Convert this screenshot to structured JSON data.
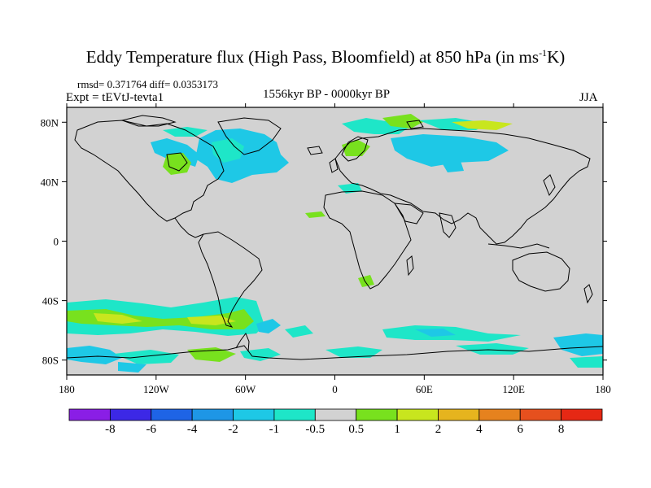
{
  "title": {
    "text": "Eddy Temperature flux (High Pass, Bloomfield) at 850 hPa (in ms",
    "sup": "-1",
    "tail": "K)"
  },
  "stats": "rmsd= 0.371764 diff= 0.0353173",
  "experiment": "Expt = tEVtJ-tevta1",
  "period": "1556kyr BP - 0000kyr BP",
  "season": "JJA",
  "axes": {
    "lon_ticks": [
      "180",
      "120W",
      "60W",
      "0",
      "60E",
      "120E",
      "180"
    ],
    "lat_ticks": [
      "80N",
      "40N",
      "0",
      "40S",
      "80S"
    ]
  },
  "colorbar": {
    "labels": [
      "-8",
      "-6",
      "-4",
      "-2",
      "-1",
      "-0.5",
      "0.5",
      "1",
      "2",
      "4",
      "6",
      "8"
    ],
    "colors": [
      "#8a1ee6",
      "#3c28e6",
      "#1e64e6",
      "#1e96e6",
      "#1ec8e6",
      "#1ee6c8",
      "#d2d2d2",
      "#78e11e",
      "#c8e61e",
      "#e6b41e",
      "#e6821e",
      "#e6501e",
      "#e62814"
    ]
  },
  "colors": {
    "background": "#d2d2d2",
    "neg_weak": "#1ee6c8",
    "neg_mid": "#1ec8e6",
    "pos_weak": "#78e11e",
    "pos_mid": "#c8e61e"
  }
}
